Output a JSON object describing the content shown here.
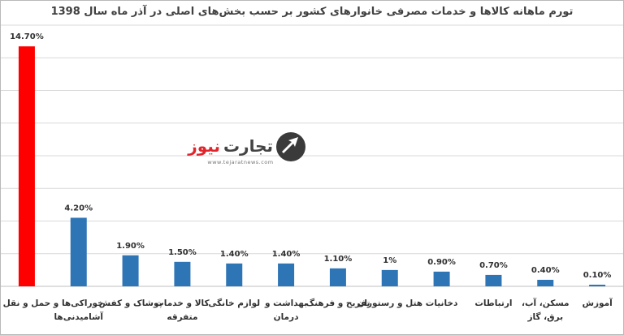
{
  "watermark": {
    "brand_part1": "تجارت",
    "brand_part2": "نیوز",
    "url": "www.tejaratnews.com"
  },
  "colors": {
    "highlight": "#ff0000",
    "bar": "#2e75b6",
    "grid": "#d9d9d9"
  },
  "chart_data": {
    "type": "bar",
    "title": "تورم ماهانه کالاها و خدمات مصرفی خانوارهای کشور بر حسب بخش‌های اصلی در آذر ماه سال 1398",
    "xlabel": "",
    "ylabel": "",
    "ylim": [
      0,
      16
    ],
    "grid": true,
    "legend": "none",
    "unit": "%",
    "categories": [
      [
        "حمل و نقل"
      ],
      [
        "خوراکی‌ها و",
        "آشامیدنی‌ها"
      ],
      [
        "پوشاک و کفش"
      ],
      [
        "کالا و خدمات",
        "متفرقه"
      ],
      [
        "لوازم خانگی"
      ],
      [
        "بهداشت و",
        "درمان"
      ],
      [
        "تفریح و فرهنگ"
      ],
      [
        "هتل و رستوران"
      ],
      [
        "دخانیات"
      ],
      [
        "ارتباطات"
      ],
      [
        "مسکن، آب،",
        "برق، گاز"
      ],
      [
        "آموزش"
      ]
    ],
    "values": [
      14.7,
      4.2,
      1.9,
      1.5,
      1.4,
      1.4,
      1.1,
      1.0,
      0.9,
      0.7,
      0.4,
      0.1
    ],
    "value_labels": [
      "14.70%",
      "4.20%",
      "1.90%",
      "1.50%",
      "1.40%",
      "1.40%",
      "1.10%",
      "1%",
      "0.90%",
      "0.70%",
      "0.40%",
      "0.10%"
    ],
    "highlight_index": 0
  }
}
